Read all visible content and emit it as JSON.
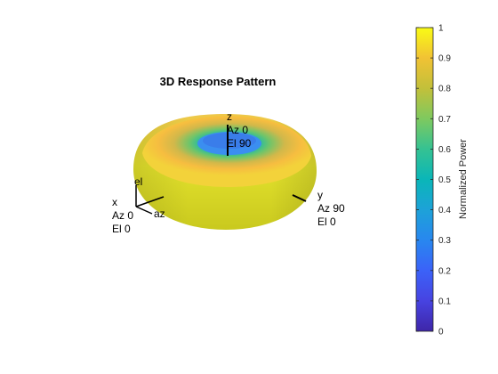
{
  "chart_data": {
    "type": "surface",
    "title": "3D Response Pattern",
    "surface_shape": "torus",
    "pattern": {
      "description_points": [
        {
          "elevation_deg": 90,
          "normalized_power": 0.4
        },
        {
          "elevation_deg": 60,
          "normalized_power": 0.75
        },
        {
          "elevation_deg": 30,
          "normalized_power": 0.95
        },
        {
          "elevation_deg": 0,
          "normalized_power": 1.0
        }
      ]
    },
    "axes_labels": {
      "x": [
        "x",
        "Az 0",
        "El 0"
      ],
      "y": [
        "y",
        "Az 90",
        "El 0"
      ],
      "z": [
        "z",
        "Az 0",
        "El 90"
      ],
      "az": "az",
      "el": "el"
    },
    "colorbar": {
      "label": "Normalized Power",
      "ticks": [
        "0",
        "0.1",
        "0.2",
        "0.3",
        "0.4",
        "0.5",
        "0.6",
        "0.7",
        "0.8",
        "0.9",
        "1"
      ],
      "colormap": "parula",
      "range": [
        0,
        1
      ]
    }
  }
}
